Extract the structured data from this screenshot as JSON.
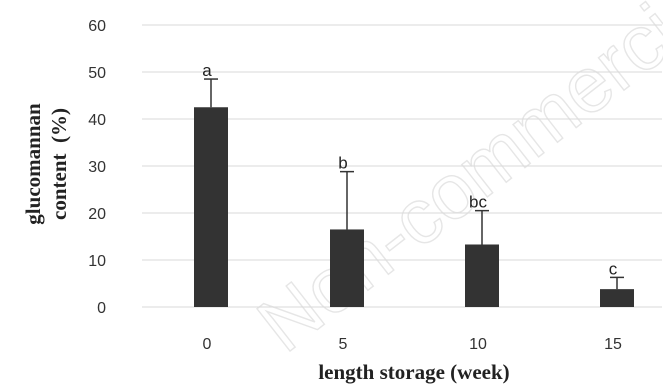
{
  "chart_data": {
    "type": "bar",
    "title": "",
    "xlabel": "length storage (week)",
    "ylabel_lines": [
      "glucomannan",
      "content  (%)"
    ],
    "categories": [
      "0",
      "5",
      "10",
      "15"
    ],
    "values": [
      42.5,
      16.5,
      13.3,
      3.8
    ],
    "errors": [
      6.0,
      12.3,
      7.2,
      2.5
    ],
    "significance_labels": [
      "a",
      "b",
      "bc",
      "c"
    ],
    "ylim": [
      0,
      60
    ],
    "y_ticks": [
      "0",
      "10",
      "20",
      "30",
      "40",
      "50",
      "60"
    ],
    "grid": true,
    "bar_color": "#333333",
    "grid_color": "#d9d9d9"
  },
  "watermark": "Non-commercial"
}
